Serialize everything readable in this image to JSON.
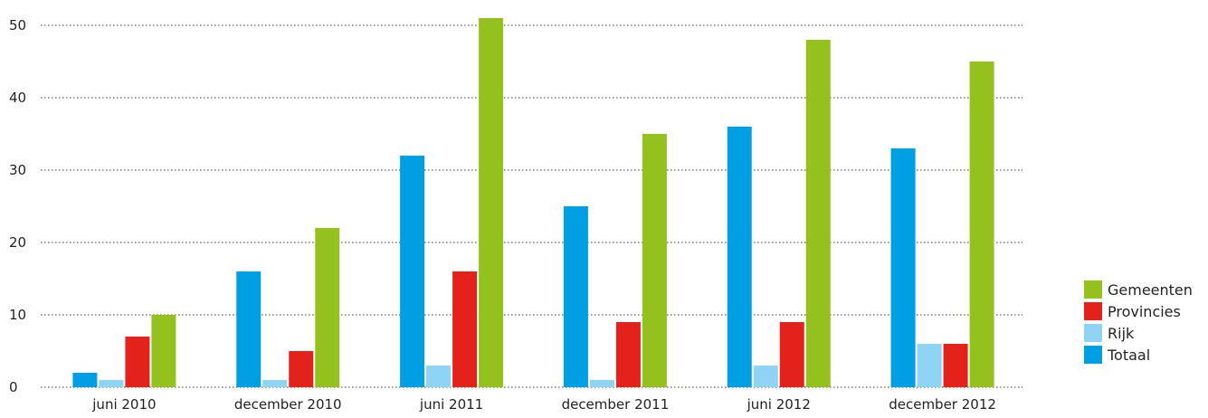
{
  "chart_data": {
    "type": "bar",
    "title": "",
    "xlabel": "",
    "ylabel": "",
    "ylim": [
      0,
      50
    ],
    "yticks": [
      0,
      10,
      20,
      30,
      40,
      50
    ],
    "grid": "horizontal-dotted",
    "legend_position": "right",
    "categories": [
      "juni 2010",
      "december 2010",
      "juni 2011",
      "december 2011",
      "juni 2012",
      "december 2012"
    ],
    "series": [
      {
        "name": "Totaal",
        "color": "#009fe3",
        "values": [
          2,
          16,
          32,
          25,
          36,
          33
        ]
      },
      {
        "name": "Rijk",
        "color": "#8fd3f5",
        "values": [
          1,
          1,
          3,
          1,
          3,
          6
        ]
      },
      {
        "name": "Provincies",
        "color": "#e3231b",
        "values": [
          7,
          5,
          16,
          9,
          9,
          6
        ]
      },
      {
        "name": "Gemeenten",
        "color": "#95c11f",
        "values": [
          10,
          22,
          51,
          35,
          48,
          45
        ]
      }
    ],
    "legend_order": [
      "Gemeenten",
      "Provincies",
      "Rijk",
      "Totaal"
    ]
  }
}
